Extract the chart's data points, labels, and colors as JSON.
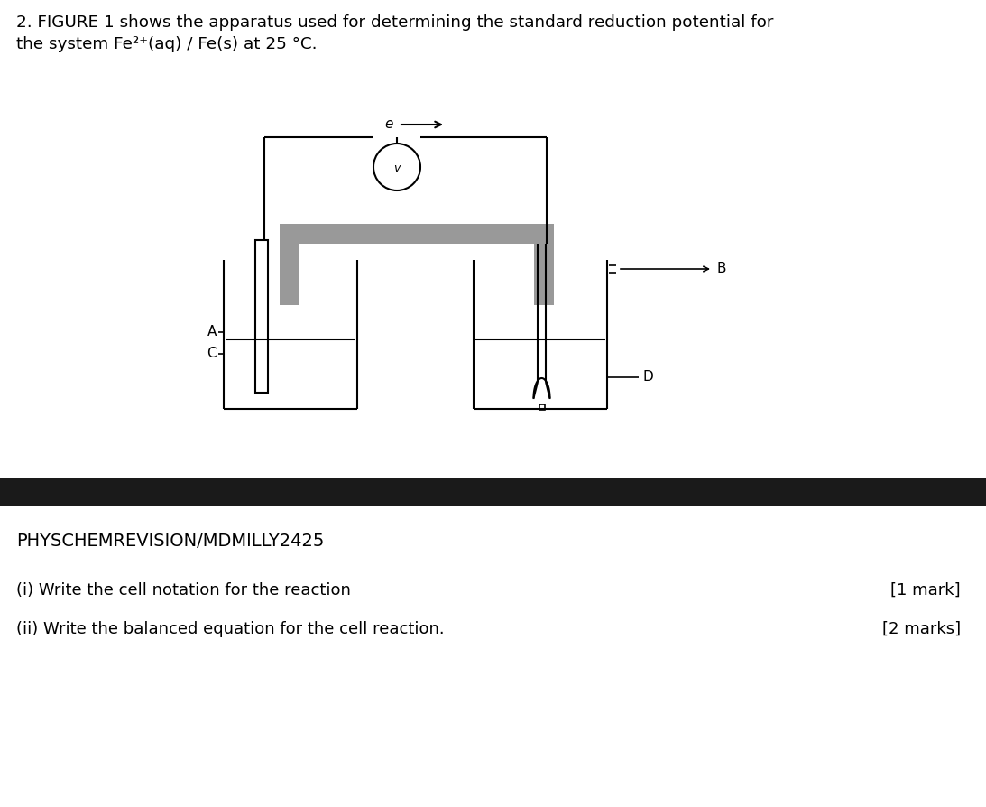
{
  "title_line1": "2. FIGURE 1 shows the apparatus used for determining the standard reduction potential for",
  "title_line2": "the system Fe²⁺(aq) / Fe(s) at 25 °C.",
  "footer_text": "PHYSCHEMREVISION/MDMILLY2425",
  "question_i": "(i) Write the cell notation for the reaction",
  "question_ii": "(ii) Write the balanced equation for the cell reaction.",
  "mark_i": "[1 mark]",
  "mark_ii": "[2 marks]",
  "bg_color": "#ffffff",
  "line_color": "#000000",
  "gray_color": "#999999",
  "footer_bg": "#1a1a1a",
  "lw": 1.5,
  "lw_thin": 1.2
}
